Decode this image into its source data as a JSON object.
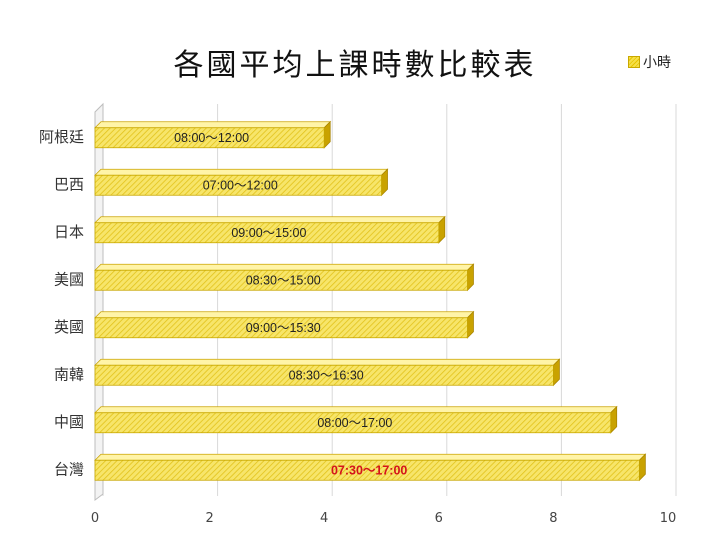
{
  "chart_data": {
    "type": "bar",
    "orientation": "horizontal",
    "title": "各國平均上課時數比較表",
    "legend": {
      "label": "小時",
      "position": "top-right"
    },
    "categories": [
      "阿根廷",
      "巴西",
      "日本",
      "美國",
      "英國",
      "南韓",
      "中國",
      "台灣"
    ],
    "values": [
      4,
      5,
      6,
      6.5,
      6.5,
      8,
      9,
      9.5
    ],
    "data_labels": [
      "08:00～12:00",
      "07:00～12:00",
      "09:00～15:00",
      "08:30～15:00",
      "09:00～15:30",
      "08:30～16:30",
      "08:00～17:00",
      "07:30～17:00"
    ],
    "highlight_category": "台灣",
    "xlim": [
      0,
      10
    ],
    "xticks": [
      0,
      2,
      4,
      6,
      8,
      10
    ],
    "grid": true,
    "colors": {
      "bar_fill": "#f7e56a",
      "bar_hatch": "#e2c21a",
      "bar_top": "#fff4a8",
      "bar_side": "#c9a200",
      "highlight_text": "#d4141c",
      "grid": "#d9d9d9"
    }
  }
}
